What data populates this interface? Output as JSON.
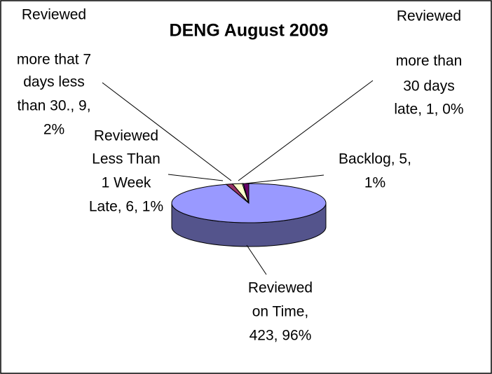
{
  "chart_data": {
    "type": "pie3d",
    "title": "DENG August 2009",
    "values": [
      423,
      6,
      9,
      1,
      5
    ],
    "labels": [
      [
        "Reviewed",
        "on Time,",
        "423, 96%"
      ],
      [
        "Reviewed",
        "Less Than",
        "1 Week",
        "Late, 6, 1%"
      ],
      [
        "Reviewed",
        "more that 7",
        "days less",
        "than 30., 9,",
        "2%"
      ],
      [
        "Reviewed",
        "more than",
        "30 days",
        "late, 1, 0%"
      ],
      [
        "Backlog, 5,",
        "1%"
      ]
    ],
    "colors": [
      "#9999ff",
      "#993366",
      "#ffffcc",
      "#ccffff",
      "#660066"
    ]
  }
}
